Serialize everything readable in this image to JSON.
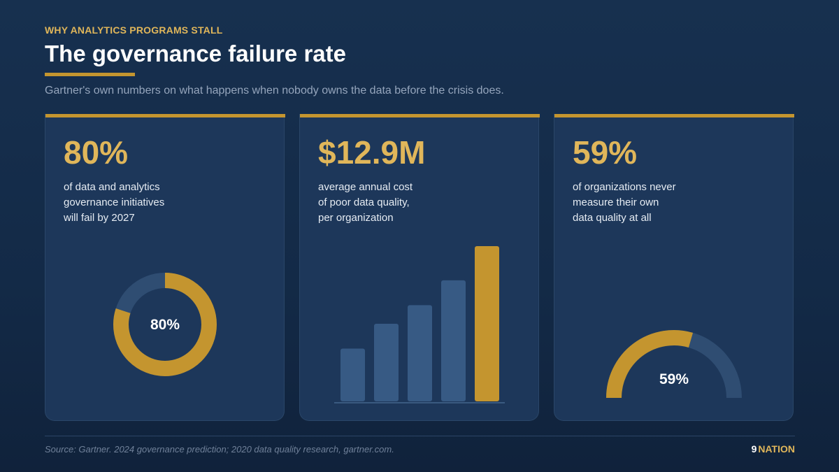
{
  "header": {
    "eyebrow": "WHY ANALYTICS PROGRAMS STALL",
    "title": "The governance failure rate",
    "subtitle": "Gartner's own numbers on what happens when nobody owns the data before the crisis does."
  },
  "cards": [
    {
      "stat": "80%",
      "description_lines": [
        "of data and analytics",
        "governance initiatives",
        "will fail by 2027"
      ],
      "viz": {
        "type": "donut",
        "label": "80%",
        "value": 0.8
      }
    },
    {
      "stat": "$12.9M",
      "description_lines": [
        "average annual cost",
        "of poor data quality,",
        "per organization"
      ],
      "viz": {
        "type": "bars",
        "values": [
          0.34,
          0.5,
          0.62,
          0.78,
          1.0
        ],
        "highlight_index": 4
      }
    },
    {
      "stat": "59%",
      "description_lines": [
        "of organizations never",
        "measure their own",
        "data quality at all"
      ],
      "viz": {
        "type": "semicircle",
        "label": "59%",
        "value": 0.59
      }
    }
  ],
  "footer": {
    "source": "Source: Gartner. 2024 governance prediction; 2020 data quality research, gartner.com.",
    "brand_number": "9",
    "brand_name": "NATION"
  },
  "colors": {
    "gold": "#c4952f",
    "gold_text": "#e0b65a",
    "track": "#2f4d72",
    "bar_muted": "#375a84"
  }
}
